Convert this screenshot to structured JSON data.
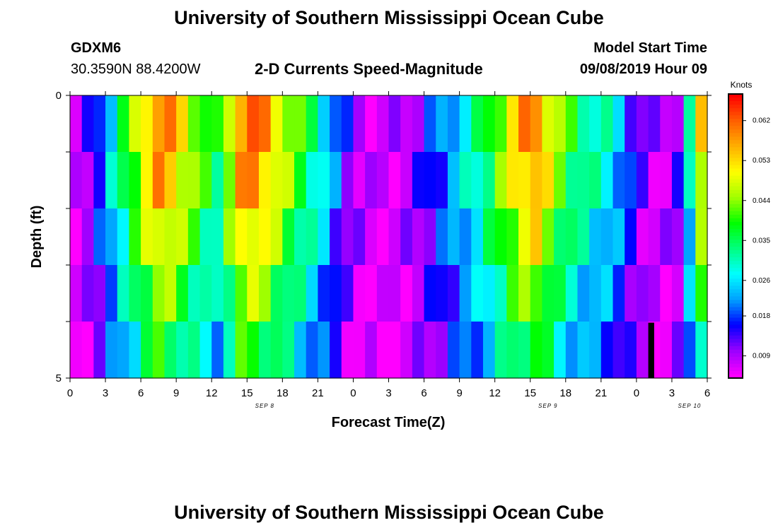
{
  "header": {
    "title": "University of Southern Mississippi Ocean Cube",
    "station_id": "GDXM6",
    "station_coords": "30.3590N 88.4200W",
    "model_start_label": "Model Start Time",
    "model_start_value": "09/08/2019 Hour 09",
    "footer_title": "University of Southern Mississippi Ocean Cube"
  },
  "chart_data": {
    "type": "heatmap",
    "title": "2-D Currents Speed-Magnitude",
    "xlabel": "Forecast Time(Z)",
    "ylabel": "Depth (ft)",
    "colorbar_label": "Knots",
    "x_ticks": [
      "0",
      "3",
      "6",
      "9",
      "12",
      "15",
      "18",
      "21",
      "0",
      "3",
      "6",
      "9",
      "12",
      "15",
      "18",
      "21",
      "0",
      "3",
      "6"
    ],
    "date_labels": [
      {
        "text": "SEP 8",
        "after_tick": 5
      },
      {
        "text": "SEP 9",
        "after_tick": 13
      },
      {
        "text": "SEP 10",
        "after_tick": 17
      }
    ],
    "y_ticks": [
      "0",
      "5"
    ],
    "ylim": [
      0,
      5
    ],
    "depth_levels": 5,
    "hours": 54,
    "colorbar_ticks": [
      "0.009",
      "0.018",
      "0.026",
      "0.035",
      "0.044",
      "0.053",
      "0.062"
    ],
    "vmin": 0.004,
    "vmax": 0.068,
    "colors": {
      "scale": [
        "#ff00ff",
        "#9900ff",
        "#0000ff",
        "#00a0ff",
        "#00ffff",
        "#00ff80",
        "#00ff00",
        "#a0ff00",
        "#ffff00",
        "#ffb000",
        "#ff6000",
        "#ff0000"
      ],
      "missing": "#000000"
    },
    "speed_profile": [
      0.006,
      0.011,
      0.018,
      0.027,
      0.036,
      0.045,
      0.054,
      0.06,
      0.058,
      0.052,
      0.046,
      0.04,
      0.036,
      0.048,
      0.06,
      0.062,
      0.058,
      0.052,
      0.046,
      0.04,
      0.034,
      0.028,
      0.02,
      0.013,
      0.009,
      0.007,
      0.006,
      0.007,
      0.009,
      0.012,
      0.016,
      0.02,
      0.024,
      0.028,
      0.032,
      0.038,
      0.045,
      0.052,
      0.058,
      0.06,
      0.052,
      0.044,
      0.038,
      0.034,
      0.031,
      0.029,
      0.024,
      0.017,
      0.011,
      0.008,
      0.008,
      0.012,
      0.03,
      0.052
    ],
    "depth_factors": [
      1.0,
      0.95,
      0.85,
      0.74,
      0.64
    ]
  }
}
